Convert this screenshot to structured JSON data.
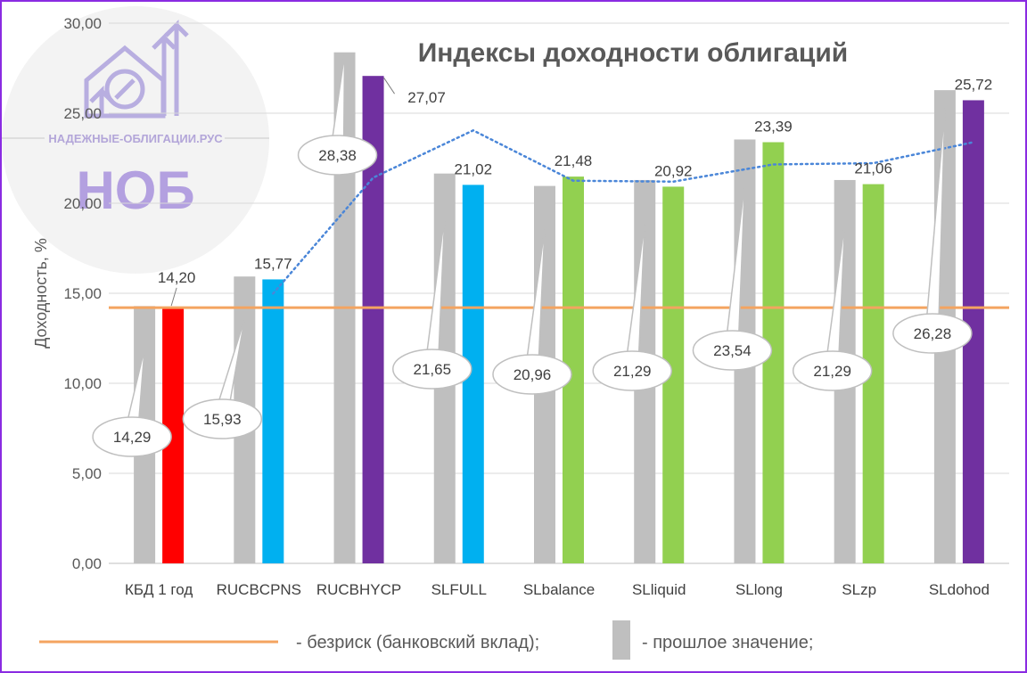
{
  "logo": {
    "site_text": "НАДЕЖНЫЕ-ОБЛИГАЦИИ.РУС",
    "abbr": "НОБ",
    "icon": "house-percent-arrows-icon"
  },
  "chart_data": {
    "type": "bar",
    "title": "Индексы доходности облигаций",
    "ylabel": "Доходность, %",
    "xlabel": "",
    "ylim": [
      0,
      30
    ],
    "yticks": [
      "0,00",
      "5,00",
      "10,00",
      "15,00",
      "20,00",
      "25,00",
      "30,00"
    ],
    "ytick_values": [
      0,
      5,
      10,
      15,
      20,
      25,
      30
    ],
    "grid": true,
    "categories": [
      "КБД 1 год",
      "RUCBCPNS",
      "RUCBHYCP",
      "SLFULL",
      "SLbalance",
      "SLliquid",
      "SLlong",
      "SLzp",
      "SLdohod"
    ],
    "series": [
      {
        "name": "прошлое значение",
        "color": "#bfbfbf",
        "values": [
          14.29,
          15.93,
          28.38,
          21.65,
          20.96,
          21.29,
          23.54,
          21.29,
          26.28
        ],
        "labels": [
          "14,29",
          "15,93",
          "28,38",
          "21,65",
          "20,96",
          "21,29",
          "23,54",
          "21,29",
          "26,28"
        ]
      },
      {
        "name": "",
        "values": [
          14.2,
          15.77,
          27.07,
          21.02,
          21.48,
          20.92,
          23.39,
          21.06,
          25.72
        ],
        "labels": [
          "14,20",
          "15,77",
          "27,07",
          "21,02",
          "21,48",
          "20,92",
          "23,39",
          "21,06",
          "25,72"
        ],
        "colors": [
          "#ff0000",
          "#00b0f0",
          "#7030a0",
          "#00b0f0",
          "#92d050",
          "#92d050",
          "#92d050",
          "#92d050",
          "#7030a0"
        ]
      }
    ],
    "risk_free": {
      "value": 14.2,
      "color": "#f4a460"
    },
    "trendline": {
      "color": "#4a86d8",
      "style": "dotted"
    },
    "legend": {
      "position": "bottom",
      "items": [
        {
          "text": "- безриск (банковский вклад);",
          "color": "#f4a460",
          "kind": "line"
        },
        {
          "text": "- прошлое значение;",
          "color": "#bfbfbf",
          "kind": "bar"
        }
      ]
    }
  }
}
